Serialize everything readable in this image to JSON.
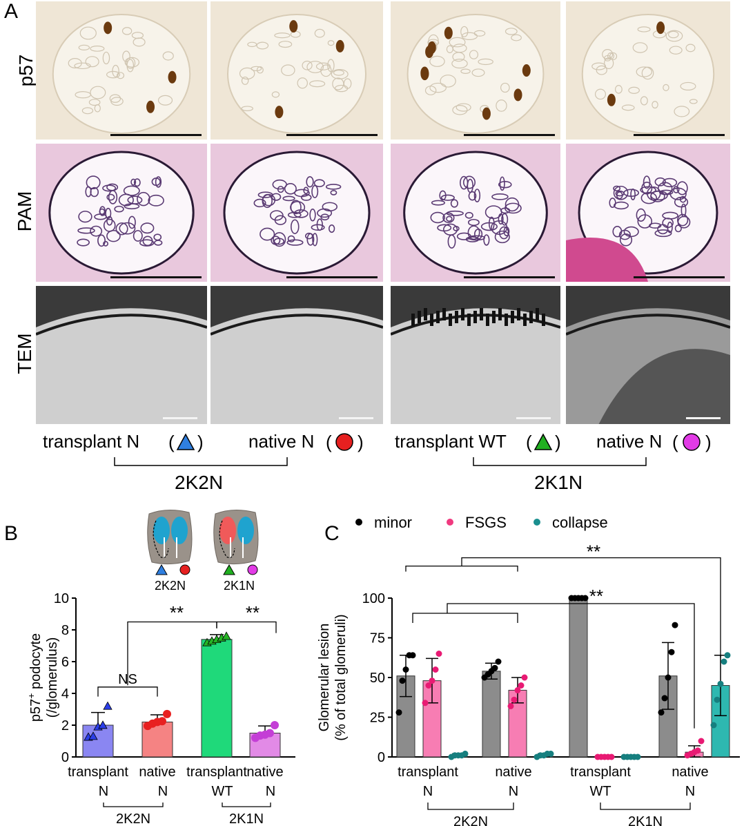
{
  "panel_a": {
    "letter": "A",
    "row_labels": [
      "p57",
      "PAM",
      "TEM"
    ],
    "legend": [
      {
        "text": "transplant N",
        "symbol": "triangle",
        "color": "#2f7fe0"
      },
      {
        "text": "native N",
        "symbol": "circle",
        "color": "#e62020"
      },
      {
        "text": "transplant WT",
        "symbol": "triangle",
        "color": "#21b021"
      },
      {
        "text": "native N",
        "symbol": "circle",
        "color": "#e23be6"
      }
    ],
    "groups": [
      "2K2N",
      "2K1N"
    ]
  },
  "panel_b": {
    "letter": "B",
    "schematic_labels": [
      "2K2N",
      "2K1N"
    ]
  },
  "panel_c": {
    "letter": "C"
  },
  "colors": {
    "stain_p57_bg": "#efe6d6",
    "stain_pam_bg": "#e9c8dd",
    "stain_pam_dark": "#5a3a73",
    "tem_bg": "#cfcfcf",
    "kidney_blue": "#1fa3cf",
    "kidney_red": "#f05a5a"
  },
  "chart_data": [
    {
      "type": "bar",
      "panel": "B",
      "ylabel": "p57+ podocyte (/glomerulus)",
      "ylabel_main": "p57",
      "ylabel_sup": "+",
      "ylabel_rest": " podocyte",
      "ylabel_line2": "(/glomerulus)",
      "ylim": [
        0,
        10
      ],
      "yticks": [
        "0",
        "2",
        "4",
        "6",
        "8",
        "10"
      ],
      "categories": [
        {
          "line1": "transplant",
          "line2": "N"
        },
        {
          "line1": "native",
          "line2": "N"
        },
        {
          "line1": "transplant",
          "line2": "WT"
        },
        {
          "line1": "native",
          "line2": "N"
        }
      ],
      "groups": [
        "2K2N",
        "2K1N"
      ],
      "values": [
        2.0,
        2.2,
        7.4,
        1.5
      ],
      "errors": [
        0.8,
        0.45,
        0.3,
        0.45
      ],
      "bar_colors": [
        "#8a86f2",
        "#f58383",
        "#1fd97a",
        "#e28ae6"
      ],
      "marker_colors": [
        "#2b3ee8",
        "#e82020",
        "#25b325",
        "#c43ed6"
      ],
      "markers": [
        "triangle",
        "circle",
        "triangle",
        "circle"
      ],
      "points": [
        [
          1.25,
          1.3,
          1.9,
          2.0,
          3.2
        ],
        [
          1.95,
          2.1,
          2.2,
          2.25,
          2.7
        ],
        [
          7.2,
          7.3,
          7.4,
          7.5,
          7.6
        ],
        [
          1.2,
          1.35,
          1.4,
          1.5,
          2.0
        ]
      ],
      "annotations": [
        "NS",
        "**",
        "**"
      ]
    },
    {
      "type": "bar",
      "panel": "C",
      "ylabel_line1": "Glomerular lesion",
      "ylabel_line2": "(% of total glomeruli)",
      "ylim": [
        0,
        100
      ],
      "yticks": [
        "0",
        "25",
        "50",
        "75",
        "100"
      ],
      "legend": [
        "minor",
        "FSGS",
        "collapse"
      ],
      "legend_colors": [
        "#000000",
        "#f0397f",
        "#1a8f8f"
      ],
      "categories": [
        {
          "line1": "transplant",
          "line2": "N"
        },
        {
          "line1": "native",
          "line2": "N"
        },
        {
          "line1": "transplant",
          "line2": "WT"
        },
        {
          "line1": "native",
          "line2": "N"
        }
      ],
      "groups": [
        "2K2N",
        "2K1N"
      ],
      "series": [
        {
          "name": "minor",
          "values": [
            51,
            54,
            100,
            51
          ],
          "errors": [
            13,
            5,
            0,
            21
          ],
          "bar_color": "#8c8c8c",
          "dot_color": "#000000",
          "points": [
            [
              28,
              48,
              55,
              64,
              64
            ],
            [
              50,
              52,
              54,
              56,
              60
            ],
            [
              100,
              100,
              100,
              100,
              100
            ],
            [
              28,
              37,
              50,
              66,
              83
            ]
          ]
        },
        {
          "name": "FSGS",
          "values": [
            48,
            42,
            0,
            3
          ],
          "errors": [
            14,
            8,
            0,
            4
          ],
          "bar_color": "#f77db3",
          "dot_color": "#e81a73",
          "points": [
            [
              34,
              45,
              48,
              55,
              65
            ],
            [
              32,
              36,
              42,
              45,
              50
            ],
            [
              0,
              0,
              0,
              0,
              0
            ],
            [
              1,
              2,
              3,
              4,
              10
            ]
          ]
        },
        {
          "name": "collapse",
          "values": [
            1,
            1,
            0,
            45
          ],
          "errors": [
            1,
            1,
            0,
            19
          ],
          "bar_color": "#2eb8b0",
          "dot_color": "#167f7f",
          "points": [
            [
              0,
              1,
              1,
              1,
              2
            ],
            [
              0,
              1,
              1,
              2,
              2
            ],
            [
              0,
              0,
              0,
              0,
              0
            ],
            [
              20,
              36,
              46,
              60,
              64
            ]
          ]
        }
      ],
      "annotations": [
        "**",
        "**"
      ]
    }
  ]
}
